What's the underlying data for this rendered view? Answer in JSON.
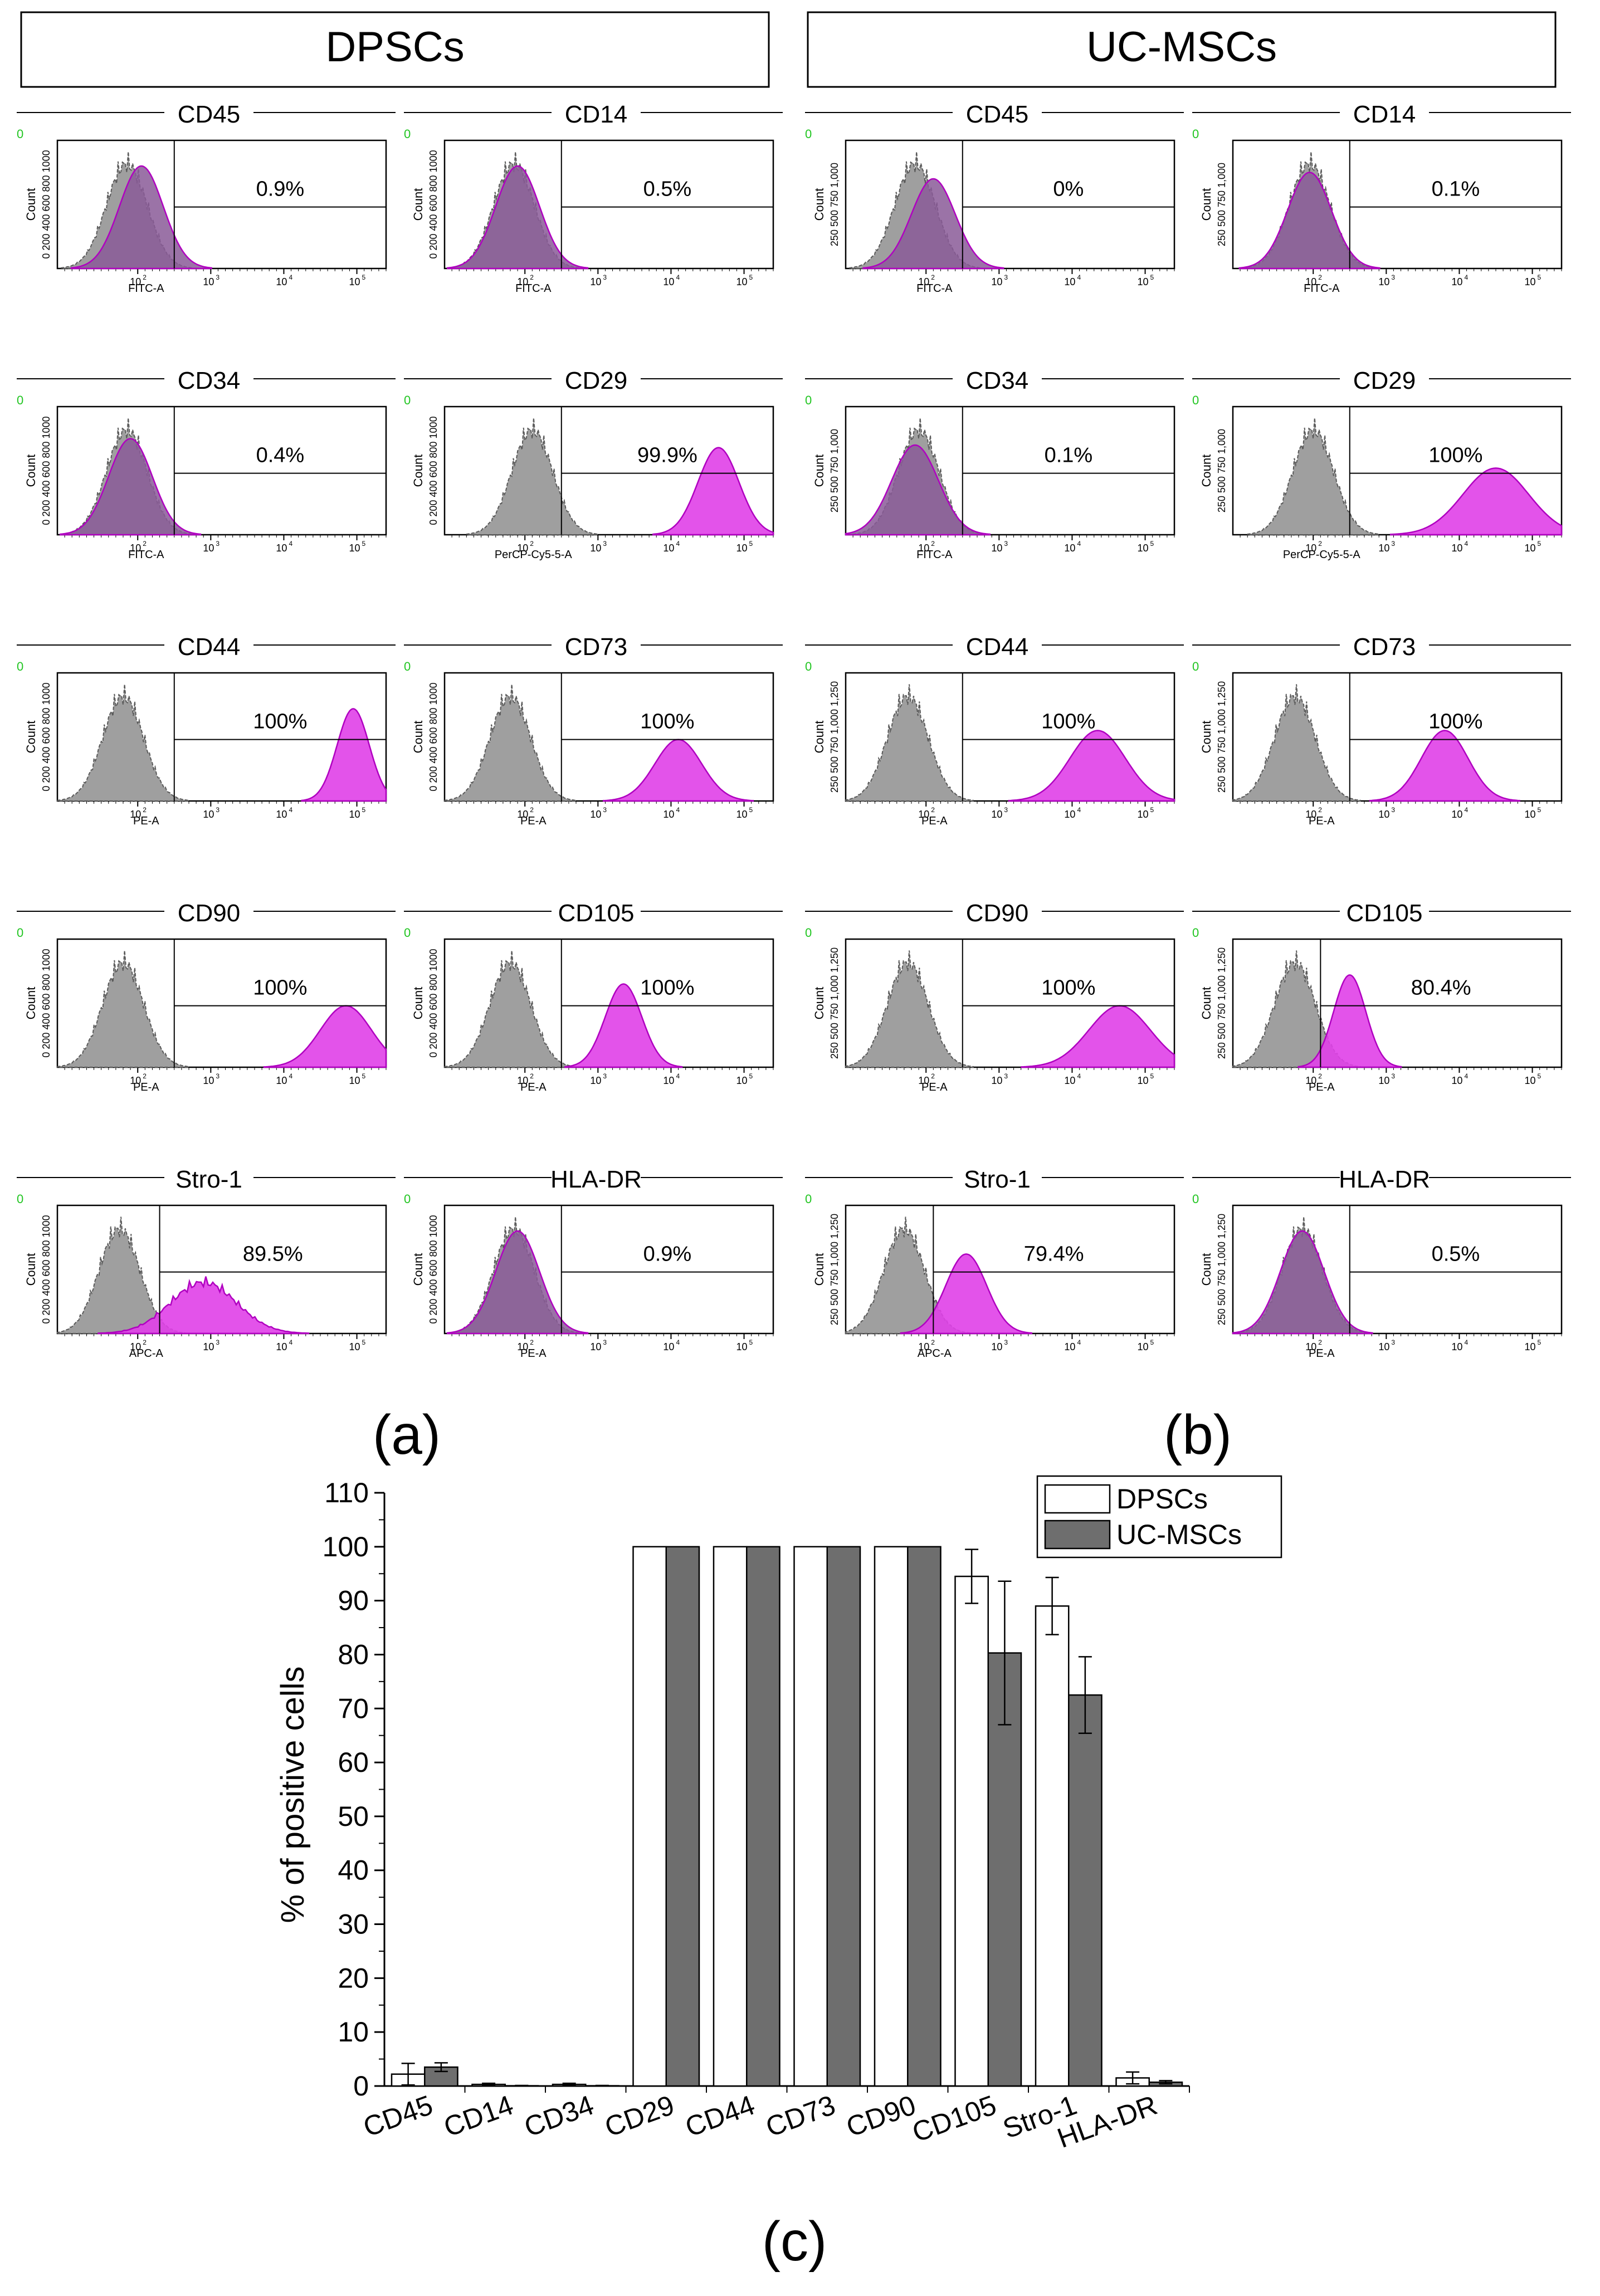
{
  "figure": {
    "panel_a_title": "DPSCs",
    "panel_b_title": "UC-MSCs",
    "panel_a_label": "(a)",
    "panel_b_label": "(b)",
    "panel_c_label": "(c)"
  },
  "colors": {
    "isotype": "#9a9a9a",
    "isotype_edge": "#5a5a5a",
    "marker": "#e040e8",
    "marker_edge": "#b000c0",
    "overlap": "#8a5a98",
    "bar_dpsc": "#ffffff",
    "bar_ucmsc": "#6e6e6e",
    "axis": "#000000",
    "corner_mark": "#21c521"
  },
  "histogram_axis": {
    "ylabel": "Count",
    "tick_10_2": "10",
    "tick_10_3": "10",
    "tick_10_4": "10",
    "tick_10_5": "10",
    "exp_2": "2",
    "exp_3": "3",
    "exp_4": "4",
    "exp_5": "5",
    "dpsc_yticks": "0 200 400 600 800 1000",
    "ucmsc_yticks_1000": [
      "250",
      "500",
      "750",
      "1,000"
    ],
    "ucmsc_yticks_1250": [
      "250",
      "500",
      "750",
      "1,000",
      "1,250"
    ]
  },
  "chart_data": [
    {
      "type": "histogram_grid",
      "group": "DPSCs",
      "xscale": "log10",
      "xlim": [
        10,
        200000
      ],
      "panels": [
        {
          "marker": "CD45",
          "percent": "0.9%",
          "channel": "FITC-A",
          "mode": "overlap",
          "gate_log10": 2.5,
          "iso_center_log10": 1.85,
          "marker_center_log10": 2.05,
          "marker_width": 0.3,
          "marker_height": 0.8
        },
        {
          "marker": "CD14",
          "percent": "0.5%",
          "channel": "FITC-A",
          "mode": "overlap",
          "gate_log10": 2.5,
          "iso_center_log10": 1.85,
          "marker_center_log10": 1.9,
          "marker_width": 0.3,
          "marker_height": 0.8
        },
        {
          "marker": "CD34",
          "percent": "0.4%",
          "channel": "FITC-A",
          "mode": "overlap",
          "gate_log10": 2.5,
          "iso_center_log10": 1.85,
          "marker_center_log10": 1.9,
          "marker_width": 0.3,
          "marker_height": 0.75
        },
        {
          "marker": "CD29",
          "percent": "99.9%",
          "channel": "PerCP-Cy5-5-A",
          "mode": "shift",
          "gate_log10": 2.5,
          "iso_center_log10": 2.1,
          "marker_center_log10": 4.65,
          "marker_width": 0.28,
          "marker_height": 0.68
        },
        {
          "marker": "CD44",
          "percent": "100%",
          "channel": "PE-A",
          "mode": "shift",
          "gate_log10": 2.5,
          "iso_center_log10": 1.8,
          "marker_center_log10": 4.95,
          "marker_width": 0.22,
          "marker_height": 0.72
        },
        {
          "marker": "CD73",
          "percent": "100%",
          "channel": "PE-A",
          "mode": "shift",
          "gate_log10": 2.5,
          "iso_center_log10": 1.8,
          "marker_center_log10": 4.1,
          "marker_width": 0.32,
          "marker_height": 0.48
        },
        {
          "marker": "CD90",
          "percent": "100%",
          "channel": "PE-A",
          "mode": "shift",
          "gate_log10": 2.5,
          "iso_center_log10": 1.8,
          "marker_center_log10": 4.85,
          "marker_width": 0.35,
          "marker_height": 0.48
        },
        {
          "marker": "CD105",
          "percent": "100%",
          "channel": "PE-A",
          "mode": "shift",
          "gate_log10": 2.5,
          "iso_center_log10": 1.8,
          "marker_center_log10": 3.35,
          "marker_width": 0.25,
          "marker_height": 0.65
        },
        {
          "marker": "Stro-1",
          "percent": "89.5%",
          "channel": "APC-A",
          "mode": "broad",
          "gate_log10": 2.3,
          "iso_center_log10": 1.75,
          "marker_center_log10": 2.9,
          "marker_width": 0.45,
          "marker_height": 0.4
        },
        {
          "marker": "HLA-DR",
          "percent": "0.9%",
          "channel": "PE-A",
          "mode": "overlap",
          "gate_log10": 2.5,
          "iso_center_log10": 1.85,
          "marker_center_log10": 1.9,
          "marker_width": 0.3,
          "marker_height": 0.8
        }
      ]
    },
    {
      "type": "histogram_grid",
      "group": "UC-MSCs",
      "xscale": "log10",
      "xlim": [
        10,
        200000
      ],
      "panels": [
        {
          "marker": "CD45",
          "percent": "0%",
          "channel": "FITC-A",
          "mode": "overlap",
          "gate_log10": 2.5,
          "iso_center_log10": 1.85,
          "marker_center_log10": 2.1,
          "marker_width": 0.3,
          "marker_height": 0.7
        },
        {
          "marker": "CD14",
          "percent": "0.1%",
          "channel": "FITC-A",
          "mode": "overlap",
          "gate_log10": 2.5,
          "iso_center_log10": 1.95,
          "marker_center_log10": 1.95,
          "marker_width": 0.3,
          "marker_height": 0.75
        },
        {
          "marker": "CD34",
          "percent": "0.1%",
          "channel": "FITC-A",
          "mode": "overlap",
          "gate_log10": 2.5,
          "iso_center_log10": 1.9,
          "marker_center_log10": 1.85,
          "marker_width": 0.32,
          "marker_height": 0.7
        },
        {
          "marker": "CD29",
          "percent": "100%",
          "channel": "PerCP-Cy5-5-A",
          "mode": "shift",
          "gate_log10": 2.5,
          "iso_center_log10": 2.0,
          "marker_center_log10": 4.5,
          "marker_width": 0.45,
          "marker_height": 0.52
        },
        {
          "marker": "CD44",
          "percent": "100%",
          "channel": "PE-A",
          "mode": "shift",
          "gate_log10": 2.5,
          "iso_center_log10": 1.75,
          "marker_center_log10": 4.35,
          "marker_width": 0.38,
          "marker_height": 0.55
        },
        {
          "marker": "CD73",
          "percent": "100%",
          "channel": "PE-A",
          "mode": "shift",
          "gate_log10": 2.5,
          "iso_center_log10": 1.75,
          "marker_center_log10": 3.8,
          "marker_width": 0.32,
          "marker_height": 0.55
        },
        {
          "marker": "CD90",
          "percent": "100%",
          "channel": "PE-A",
          "mode": "shift",
          "gate_log10": 2.5,
          "iso_center_log10": 1.75,
          "marker_center_log10": 4.65,
          "marker_width": 0.42,
          "marker_height": 0.48
        },
        {
          "marker": "CD105",
          "percent": "80.4%",
          "channel": "PE-A",
          "mode": "shift",
          "gate_log10": 2.1,
          "iso_center_log10": 1.75,
          "marker_center_log10": 2.5,
          "marker_width": 0.22,
          "marker_height": 0.72
        },
        {
          "marker": "Stro-1",
          "percent": "79.4%",
          "channel": "APC-A",
          "mode": "shift",
          "gate_log10": 2.1,
          "iso_center_log10": 1.7,
          "marker_center_log10": 2.55,
          "marker_width": 0.28,
          "marker_height": 0.62
        },
        {
          "marker": "HLA-DR",
          "percent": "0.5%",
          "channel": "PE-A",
          "mode": "overlap",
          "gate_log10": 2.5,
          "iso_center_log10": 1.85,
          "marker_center_log10": 1.85,
          "marker_width": 0.3,
          "marker_height": 0.8
        }
      ]
    },
    {
      "type": "bar",
      "title": "",
      "xlabel": "",
      "ylabel": "% of positive cells",
      "ylim": [
        0,
        110
      ],
      "yticks": [
        0,
        10,
        20,
        30,
        40,
        50,
        60,
        70,
        80,
        90,
        100,
        110
      ],
      "grid": false,
      "legend_position": "top-right",
      "categories": [
        "CD45",
        "CD14",
        "CD34",
        "CD29",
        "CD44",
        "CD73",
        "CD90",
        "CD105",
        "Stro-1",
        "HLA-DR"
      ],
      "series": [
        {
          "name": "DPSCs",
          "values": [
            2.2,
            0.3,
            0.3,
            100,
            100,
            100,
            100,
            94.5,
            89.0,
            1.5
          ],
          "errors": [
            2.0,
            0.2,
            0.2,
            0,
            0,
            0,
            0,
            5.0,
            5.3,
            1.1
          ]
        },
        {
          "name": "UC-MSCs",
          "values": [
            3.5,
            0.05,
            0.05,
            100,
            100,
            100,
            100,
            80.3,
            72.5,
            0.7
          ],
          "errors": [
            0.8,
            0.05,
            0.05,
            0,
            0,
            0,
            0,
            13.3,
            7.1,
            0.3
          ]
        }
      ]
    }
  ]
}
